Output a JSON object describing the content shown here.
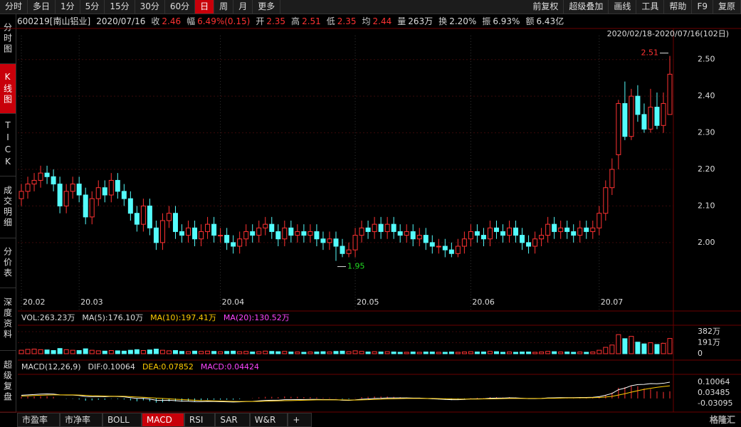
{
  "toolbar": {
    "periods": [
      "分时",
      "多日",
      "1分",
      "5分",
      "15分",
      "30分",
      "60分",
      "日",
      "周",
      "月",
      "更多"
    ],
    "active_period": 7,
    "tools": [
      "前复权",
      "超级叠加",
      "画线",
      "工具",
      "帮助",
      "F9",
      "复原"
    ]
  },
  "info": {
    "code": "600219[南山铝业]",
    "date": "2020/07/16",
    "fields": [
      {
        "label": "收",
        "value": "2.46",
        "color": "#ff3232"
      },
      {
        "label": "幅",
        "value": "6.49%(0.15)",
        "color": "#ff3232"
      },
      {
        "label": "开",
        "value": "2.35",
        "color": "#ff3232"
      },
      {
        "label": "高",
        "value": "2.51",
        "color": "#ff3232"
      },
      {
        "label": "低",
        "value": "2.35",
        "color": "#ff3232"
      },
      {
        "label": "均",
        "value": "2.44",
        "color": "#ff3232"
      },
      {
        "label": "量",
        "value": "263万",
        "color": "#dddddd"
      },
      {
        "label": "换",
        "value": "2.20%",
        "color": "#dddddd"
      },
      {
        "label": "振",
        "value": "6.93%",
        "color": "#dddddd"
      },
      {
        "label": "额",
        "value": "6.43亿",
        "color": "#dddddd"
      }
    ]
  },
  "sidebar": [
    "分时图",
    "K线图",
    "TICK",
    "成交明细",
    "分价表",
    "深度资料",
    "超级复盘"
  ],
  "sidebar_active": 1,
  "chart_data": [
    {
      "type": "candlestick",
      "range_label": "2020/02/18-2020/07/16(102日)",
      "categories": [
        "20.02",
        null,
        null,
        null,
        null,
        null,
        null,
        null,
        null,
        "20.03",
        null,
        null,
        null,
        null,
        null,
        null,
        null,
        null,
        null,
        null,
        null,
        null,
        null,
        null,
        null,
        null,
        null,
        null,
        null,
        null,
        null,
        "20.04",
        null,
        null,
        null,
        null,
        null,
        null,
        null,
        null,
        null,
        null,
        null,
        null,
        null,
        null,
        null,
        null,
        null,
        null,
        null,
        null,
        "20.05",
        null,
        null,
        null,
        null,
        null,
        null,
        null,
        null,
        null,
        null,
        null,
        null,
        null,
        null,
        null,
        null,
        null,
        "20.06",
        null,
        null,
        null,
        null,
        null,
        null,
        null,
        null,
        null,
        null,
        null,
        null,
        null,
        null,
        null,
        null,
        null,
        null,
        null,
        "20.07",
        null,
        null,
        null,
        null,
        null,
        null,
        null,
        null,
        null,
        null,
        null
      ],
      "open": [
        2.12,
        2.14,
        2.16,
        2.17,
        2.19,
        2.18,
        2.16,
        2.1,
        2.14,
        2.16,
        2.13,
        2.07,
        2.12,
        2.15,
        2.13,
        2.17,
        2.14,
        2.12,
        2.08,
        2.05,
        2.1,
        2.04,
        2.0,
        2.06,
        2.08,
        2.03,
        2.02,
        2.04,
        2.01,
        2.03,
        2.05,
        2.02,
        2.02,
        2.0,
        1.99,
        2.01,
        2.03,
        2.02,
        2.04,
        2.05,
        2.03,
        2.01,
        2.04,
        2.02,
        2.03,
        2.02,
        2.03,
        2.01,
        2.0,
        2.01,
        1.99,
        1.97,
        1.98,
        2.02,
        2.04,
        2.03,
        2.05,
        2.03,
        2.05,
        2.03,
        2.02,
        2.03,
        2.01,
        2.02,
        2.0,
        1.99,
        1.99,
        1.98,
        1.97,
        1.99,
        2.01,
        2.03,
        2.02,
        2.01,
        2.04,
        2.03,
        2.02,
        2.04,
        2.02,
        2.0,
        1.99,
        2.01,
        2.02,
        2.05,
        2.03,
        2.04,
        2.03,
        2.02,
        2.04,
        2.03,
        2.04,
        2.08,
        2.15,
        2.24,
        2.38,
        2.29,
        2.4,
        2.35,
        2.31,
        2.37,
        2.32,
        2.35
      ],
      "high": [
        2.16,
        2.18,
        2.19,
        2.21,
        2.21,
        2.2,
        2.18,
        2.16,
        2.18,
        2.18,
        2.15,
        2.14,
        2.17,
        2.17,
        2.19,
        2.19,
        2.16,
        2.14,
        2.1,
        2.12,
        2.12,
        2.06,
        2.08,
        2.1,
        2.1,
        2.05,
        2.06,
        2.06,
        2.05,
        2.07,
        2.07,
        2.04,
        2.04,
        2.02,
        2.03,
        2.05,
        2.05,
        2.06,
        2.07,
        2.07,
        2.05,
        2.06,
        2.06,
        2.05,
        2.05,
        2.05,
        2.05,
        2.03,
        2.03,
        2.03,
        2.01,
        2.0,
        2.04,
        2.06,
        2.06,
        2.07,
        2.07,
        2.07,
        2.07,
        2.05,
        2.05,
        2.05,
        2.04,
        2.04,
        2.02,
        2.01,
        2.01,
        2.0,
        2.01,
        2.03,
        2.05,
        2.05,
        2.04,
        2.06,
        2.06,
        2.05,
        2.06,
        2.06,
        2.04,
        2.02,
        2.03,
        2.04,
        2.07,
        2.07,
        2.06,
        2.06,
        2.05,
        2.06,
        2.06,
        2.06,
        2.1,
        2.17,
        2.23,
        2.39,
        2.44,
        2.42,
        2.43,
        2.38,
        2.42,
        2.41,
        2.41,
        2.51
      ],
      "low": [
        2.1,
        2.12,
        2.14,
        2.15,
        2.16,
        2.14,
        2.08,
        2.08,
        2.12,
        2.11,
        2.05,
        2.05,
        2.1,
        2.11,
        2.11,
        2.12,
        2.1,
        2.06,
        2.03,
        2.03,
        2.02,
        1.98,
        1.98,
        2.04,
        2.01,
        2.0,
        2.0,
        1.99,
        1.99,
        2.01,
        2.0,
        2.0,
        1.98,
        1.97,
        1.97,
        1.99,
        2.0,
        2.0,
        2.02,
        2.01,
        1.99,
        1.99,
        2.0,
        2.0,
        2.0,
        2.0,
        1.99,
        1.98,
        1.98,
        1.95,
        1.96,
        1.96,
        1.96,
        2.0,
        2.01,
        2.01,
        2.01,
        2.01,
        2.01,
        2.0,
        2.0,
        1.99,
        1.99,
        1.98,
        1.97,
        1.97,
        1.96,
        1.96,
        1.96,
        1.97,
        1.99,
        2.0,
        1.99,
        1.99,
        2.01,
        2.0,
        2.0,
        2.0,
        1.98,
        1.97,
        1.97,
        1.99,
        2.0,
        2.01,
        2.01,
        2.01,
        2.0,
        2.0,
        2.01,
        2.01,
        2.02,
        2.06,
        2.13,
        2.2,
        2.28,
        2.28,
        2.33,
        2.3,
        2.3,
        2.31,
        2.3,
        2.35
      ],
      "close": [
        2.14,
        2.16,
        2.17,
        2.19,
        2.18,
        2.16,
        2.1,
        2.14,
        2.16,
        2.13,
        2.07,
        2.12,
        2.15,
        2.13,
        2.17,
        2.14,
        2.12,
        2.08,
        2.05,
        2.1,
        2.04,
        2.0,
        2.06,
        2.08,
        2.03,
        2.02,
        2.04,
        2.01,
        2.03,
        2.05,
        2.02,
        2.02,
        2.0,
        1.99,
        2.01,
        2.03,
        2.02,
        2.04,
        2.05,
        2.03,
        2.01,
        2.04,
        2.02,
        2.03,
        2.02,
        2.03,
        2.01,
        2.0,
        2.01,
        1.99,
        1.97,
        1.98,
        2.02,
        2.04,
        2.03,
        2.05,
        2.03,
        2.05,
        2.03,
        2.02,
        2.03,
        2.01,
        2.02,
        2.0,
        1.99,
        1.99,
        1.98,
        1.97,
        1.99,
        2.01,
        2.03,
        2.02,
        2.01,
        2.04,
        2.03,
        2.02,
        2.04,
        2.02,
        2.0,
        1.99,
        2.01,
        2.02,
        2.05,
        2.03,
        2.04,
        2.03,
        2.02,
        2.04,
        2.03,
        2.04,
        2.08,
        2.15,
        2.2,
        2.38,
        2.29,
        2.4,
        2.35,
        2.31,
        2.37,
        2.32,
        2.38,
        2.46
      ],
      "ylim": [
        1.85,
        2.55
      ],
      "yticks": [
        {
          "value": 2.0,
          "label": "2.00"
        },
        {
          "value": 2.1,
          "label": "2.10"
        },
        {
          "value": 2.2,
          "label": "2.20"
        },
        {
          "value": 2.3,
          "label": "2.30"
        },
        {
          "value": 2.4,
          "label": "2.40"
        },
        {
          "value": 2.5,
          "label": "2.50"
        }
      ],
      "up_color": "#ff3232",
      "down_color": "#54fcfc",
      "grid": true
    },
    {
      "type": "volume",
      "legend": [
        {
          "name": "VOL:263.23万",
          "color": "#dddddd"
        },
        {
          "name": "MA(5):176.10万",
          "color": "#dddddd"
        },
        {
          "name": "MA(10):197.41万",
          "color": "#ffcc00"
        },
        {
          "name": "MA(20):130.52万",
          "color": "#ff44ff"
        }
      ],
      "values": [
        60,
        75,
        80,
        70,
        65,
        55,
        90,
        70,
        60,
        55,
        85,
        60,
        50,
        45,
        55,
        50,
        45,
        60,
        70,
        55,
        65,
        80,
        60,
        50,
        55,
        40,
        35,
        45,
        40,
        45,
        40,
        35,
        40,
        45,
        35,
        40,
        30,
        35,
        45,
        40,
        35,
        40,
        30,
        30,
        25,
        30,
        30,
        35,
        30,
        40,
        45,
        35,
        50,
        40,
        30,
        35,
        30,
        35,
        30,
        25,
        25,
        30,
        25,
        30,
        30,
        25,
        25,
        30,
        25,
        30,
        35,
        30,
        30,
        40,
        35,
        25,
        30,
        25,
        30,
        30,
        25,
        30,
        40,
        35,
        30,
        30,
        25,
        30,
        25,
        30,
        60,
        110,
        150,
        330,
        260,
        300,
        200,
        170,
        190,
        160,
        180,
        263.23
      ],
      "ylim": [
        0,
        480
      ],
      "yticks": [
        0,
        {
          "value": 191,
          "label": "191万"
        },
        {
          "value": 382,
          "label": "382万"
        }
      ]
    },
    {
      "type": "macd",
      "legend": [
        {
          "name": "MACD(12,26,9)",
          "color": "#dddddd"
        },
        {
          "name": "DIF:0.10064",
          "color": "#dddddd"
        },
        {
          "name": "DEA:0.07852",
          "color": "#ffcc00"
        },
        {
          "name": "MACD:0.04424",
          "color": "#ff44ff"
        }
      ],
      "dif": [
        0.02,
        0.022,
        0.024,
        0.027,
        0.028,
        0.027,
        0.022,
        0.021,
        0.021,
        0.018,
        0.012,
        0.011,
        0.012,
        0.011,
        0.013,
        0.012,
        0.01,
        0.005,
        0,
        0.001,
        -0.004,
        -0.011,
        -0.012,
        -0.011,
        -0.014,
        -0.017,
        -0.017,
        -0.02,
        -0.02,
        -0.018,
        -0.019,
        -0.02,
        -0.021,
        -0.022,
        -0.021,
        -0.019,
        -0.018,
        -0.015,
        -0.012,
        -0.011,
        -0.011,
        -0.008,
        -0.008,
        -0.007,
        -0.007,
        -0.006,
        -0.006,
        -0.007,
        -0.007,
        -0.008,
        -0.011,
        -0.012,
        -0.009,
        -0.005,
        -0.003,
        0,
        0.001,
        0.003,
        0.003,
        0.003,
        0.003,
        0.002,
        0.002,
        0,
        -0.002,
        -0.004,
        -0.006,
        -0.008,
        -0.008,
        -0.006,
        -0.003,
        -0.002,
        -0.002,
        0.001,
        0.002,
        0.002,
        0.004,
        0.003,
        0.001,
        -0.001,
        -0.001,
        0,
        0.003,
        0.004,
        0.005,
        0.005,
        0.005,
        0.006,
        0.006,
        0.007,
        0.011,
        0.02,
        0.031,
        0.054,
        0.064,
        0.079,
        0.086,
        0.087,
        0.092,
        0.091,
        0.094,
        0.10064
      ],
      "dea": [
        0.015,
        0.016,
        0.018,
        0.02,
        0.021,
        0.022,
        0.022,
        0.022,
        0.022,
        0.021,
        0.019,
        0.017,
        0.016,
        0.015,
        0.014,
        0.014,
        0.013,
        0.011,
        0.009,
        0.007,
        0.005,
        0.002,
        0,
        -0.002,
        -0.005,
        -0.007,
        -0.009,
        -0.011,
        -0.013,
        -0.014,
        -0.015,
        -0.016,
        -0.017,
        -0.018,
        -0.019,
        -0.019,
        -0.019,
        -0.018,
        -0.017,
        -0.016,
        -0.015,
        -0.014,
        -0.013,
        -0.012,
        -0.011,
        -0.01,
        -0.009,
        -0.009,
        -0.009,
        -0.009,
        -0.009,
        -0.01,
        -0.01,
        -0.009,
        -0.008,
        -0.006,
        -0.005,
        -0.003,
        -0.002,
        -0.001,
        0,
        0,
        0,
        0,
        0,
        -0.001,
        -0.002,
        -0.003,
        -0.004,
        -0.004,
        -0.004,
        -0.004,
        -0.003,
        -0.003,
        -0.002,
        -0.001,
        0,
        0,
        0,
        0,
        0,
        0,
        0.001,
        0.001,
        0.002,
        0.003,
        0.003,
        0.004,
        0.004,
        0.005,
        0.006,
        0.009,
        0.013,
        0.021,
        0.029,
        0.039,
        0.048,
        0.056,
        0.063,
        0.069,
        0.074,
        0.07852
      ],
      "macd": [
        0.01,
        0.012,
        0.012,
        0.014,
        0.014,
        0.01,
        0,
        -0.002,
        -0.002,
        -0.006,
        -0.014,
        -0.012,
        -0.008,
        -0.008,
        -0.002,
        -0.004,
        -0.006,
        -0.012,
        -0.018,
        -0.012,
        -0.018,
        -0.026,
        -0.024,
        -0.018,
        -0.018,
        -0.02,
        -0.016,
        -0.018,
        -0.014,
        -0.008,
        -0.008,
        -0.008,
        -0.008,
        -0.008,
        -0.004,
        0,
        0.002,
        0.006,
        0.01,
        0.01,
        0.008,
        0.012,
        0.01,
        0.01,
        0.008,
        0.008,
        0.006,
        0.004,
        0.004,
        0.002,
        -0.004,
        -0.004,
        0.002,
        0.008,
        0.01,
        0.012,
        0.012,
        0.012,
        0.01,
        0.008,
        0.006,
        0.004,
        0.004,
        0,
        -0.004,
        -0.006,
        -0.008,
        -0.01,
        -0.008,
        -0.004,
        0.002,
        0.004,
        0.002,
        0.008,
        0.008,
        0.006,
        0.008,
        0.006,
        0.002,
        -0.002,
        -0.002,
        0,
        0.004,
        0.006,
        0.006,
        0.004,
        0.004,
        0.004,
        0.004,
        0.004,
        0.01,
        0.022,
        0.036,
        0.066,
        0.07,
        0.08,
        0.076,
        0.062,
        0.058,
        0.044,
        0.04,
        0.04424
      ],
      "ylim": [
        -0.08,
        0.145
      ],
      "yticks": [
        -0.03095,
        0.03485,
        0.10064
      ],
      "dif_color": "#ffffff",
      "dea_color": "#ffcc00",
      "up_color": "#ff3232",
      "down_color": "#54fcfc"
    }
  ],
  "tabs": [
    "市盈率",
    "市净率",
    "BOLL",
    "MACD",
    "RSI",
    "SAR",
    "W&R",
    "+"
  ],
  "tab_active": 3,
  "watermark": "格隆汇"
}
